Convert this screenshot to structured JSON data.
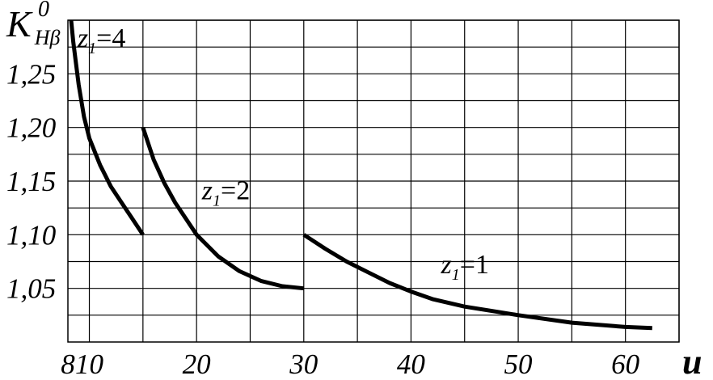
{
  "chart_data": {
    "type": "line",
    "title": "",
    "ylabel": {
      "main": "K",
      "sub": "Hβ",
      "sup": "0"
    },
    "xlabel": "u",
    "xlim": [
      8,
      65
    ],
    "ylim": [
      1.0,
      1.3
    ],
    "x_ticks": [
      {
        "value": 8,
        "label": "8"
      },
      {
        "value": 10,
        "label": "10"
      },
      {
        "value": 20,
        "label": "20"
      },
      {
        "value": 30,
        "label": "30"
      },
      {
        "value": 40,
        "label": "40"
      },
      {
        "value": 50,
        "label": "50"
      },
      {
        "value": 60,
        "label": "60"
      }
    ],
    "y_ticks": [
      {
        "value": 1.05,
        "label": "1,05"
      },
      {
        "value": 1.1,
        "label": "1,10"
      },
      {
        "value": 1.15,
        "label": "1,15"
      },
      {
        "value": 1.2,
        "label": "1,20"
      },
      {
        "value": 1.25,
        "label": "1,25"
      }
    ],
    "x_grid": [
      10,
      15,
      20,
      25,
      30,
      35,
      40,
      45,
      50,
      55,
      60,
      65
    ],
    "y_grid": [
      1.025,
      1.05,
      1.075,
      1.1,
      1.125,
      1.15,
      1.175,
      1.2,
      1.225,
      1.25,
      1.275,
      1.3
    ],
    "grid": true,
    "series": [
      {
        "label_main": "z",
        "label_sub": "1",
        "label_rest": "=4",
        "x": [
          8.3,
          8.5,
          9.0,
          9.5,
          10.0,
          11.0,
          12.0,
          13.0,
          14.0,
          15.0
        ],
        "y": [
          1.3,
          1.28,
          1.24,
          1.21,
          1.19,
          1.165,
          1.145,
          1.13,
          1.115,
          1.1
        ]
      },
      {
        "label_main": "z",
        "label_sub": "1",
        "label_rest": "=2",
        "x": [
          15.0,
          16.0,
          17.0,
          18.0,
          19.0,
          20.0,
          22.0,
          24.0,
          26.0,
          28.0,
          30.0
        ],
        "y": [
          1.2,
          1.17,
          1.148,
          1.13,
          1.115,
          1.1,
          1.08,
          1.066,
          1.057,
          1.052,
          1.05
        ]
      },
      {
        "label_main": "z",
        "label_sub": "1",
        "label_rest": "=1",
        "x": [
          30.0,
          32.0,
          34.0,
          36.0,
          38.0,
          40.0,
          42.0,
          45.0,
          50.0,
          55.0,
          60.0,
          62.5
        ],
        "y": [
          1.1,
          1.087,
          1.075,
          1.065,
          1.055,
          1.047,
          1.04,
          1.033,
          1.025,
          1.018,
          1.014,
          1.013
        ]
      }
    ]
  }
}
